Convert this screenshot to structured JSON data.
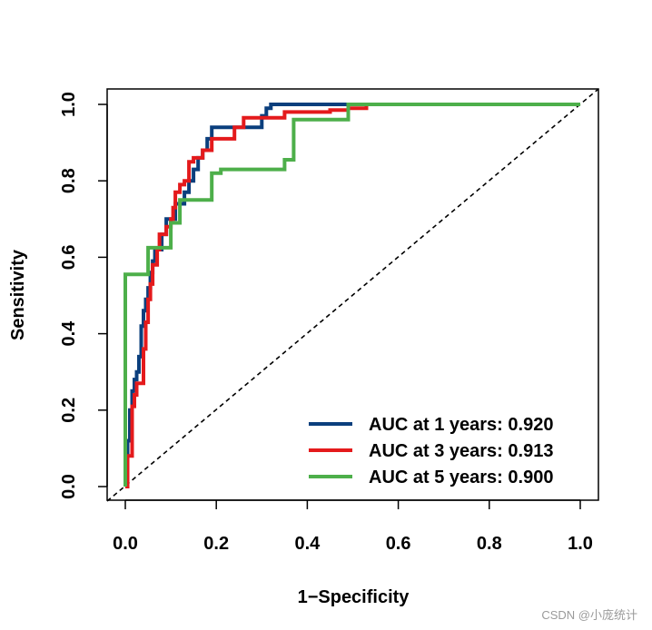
{
  "chart_data": {
    "type": "line",
    "title": "",
    "xlabel": "1−Specificity",
    "ylabel": "Sensitivity",
    "xlim": [
      0,
      1
    ],
    "ylim": [
      0,
      1
    ],
    "x_ticks": [
      0.0,
      0.2,
      0.4,
      0.6,
      0.8,
      1.0
    ],
    "y_ticks": [
      0.0,
      0.2,
      0.4,
      0.6,
      0.8,
      1.0
    ],
    "x_tick_labels": [
      "0.0",
      "0.2",
      "0.4",
      "0.6",
      "0.8",
      "1.0"
    ],
    "y_tick_labels": [
      "0.0",
      "0.2",
      "0.4",
      "0.6",
      "0.8",
      "1.0"
    ],
    "grid": false,
    "legend_position": "bottom-right",
    "reference_line": {
      "style": "dashed",
      "color": "#000000",
      "from": [
        0,
        0
      ],
      "to": [
        1,
        1
      ]
    },
    "series": [
      {
        "name": "AUC at 1 years: 0.920",
        "color": "#0b3f7d",
        "points": [
          [
            0.0,
            0.0
          ],
          [
            0.005,
            0.0
          ],
          [
            0.005,
            0.12
          ],
          [
            0.01,
            0.12
          ],
          [
            0.01,
            0.2
          ],
          [
            0.015,
            0.2
          ],
          [
            0.015,
            0.25
          ],
          [
            0.02,
            0.25
          ],
          [
            0.02,
            0.28
          ],
          [
            0.025,
            0.28
          ],
          [
            0.025,
            0.3
          ],
          [
            0.03,
            0.3
          ],
          [
            0.03,
            0.34
          ],
          [
            0.035,
            0.34
          ],
          [
            0.035,
            0.42
          ],
          [
            0.04,
            0.42
          ],
          [
            0.04,
            0.46
          ],
          [
            0.045,
            0.46
          ],
          [
            0.045,
            0.49
          ],
          [
            0.05,
            0.49
          ],
          [
            0.05,
            0.52
          ],
          [
            0.055,
            0.52
          ],
          [
            0.055,
            0.56
          ],
          [
            0.06,
            0.56
          ],
          [
            0.06,
            0.59
          ],
          [
            0.065,
            0.59
          ],
          [
            0.065,
            0.62
          ],
          [
            0.08,
            0.62
          ],
          [
            0.08,
            0.66
          ],
          [
            0.09,
            0.66
          ],
          [
            0.09,
            0.7
          ],
          [
            0.11,
            0.7
          ],
          [
            0.11,
            0.74
          ],
          [
            0.13,
            0.74
          ],
          [
            0.13,
            0.77
          ],
          [
            0.14,
            0.77
          ],
          [
            0.14,
            0.8
          ],
          [
            0.15,
            0.8
          ],
          [
            0.15,
            0.83
          ],
          [
            0.16,
            0.83
          ],
          [
            0.16,
            0.86
          ],
          [
            0.17,
            0.86
          ],
          [
            0.17,
            0.88
          ],
          [
            0.18,
            0.88
          ],
          [
            0.18,
            0.91
          ],
          [
            0.19,
            0.91
          ],
          [
            0.19,
            0.94
          ],
          [
            0.3,
            0.94
          ],
          [
            0.3,
            0.97
          ],
          [
            0.31,
            0.97
          ],
          [
            0.31,
            0.99
          ],
          [
            0.32,
            0.99
          ],
          [
            0.32,
            1.0
          ],
          [
            1.0,
            1.0
          ]
        ]
      },
      {
        "name": "AUC at 3 years: 0.913",
        "color": "#e41a1c",
        "points": [
          [
            0.0,
            0.0
          ],
          [
            0.005,
            0.0
          ],
          [
            0.005,
            0.08
          ],
          [
            0.015,
            0.08
          ],
          [
            0.015,
            0.21
          ],
          [
            0.02,
            0.21
          ],
          [
            0.02,
            0.24
          ],
          [
            0.025,
            0.24
          ],
          [
            0.025,
            0.27
          ],
          [
            0.04,
            0.27
          ],
          [
            0.04,
            0.36
          ],
          [
            0.045,
            0.36
          ],
          [
            0.045,
            0.43
          ],
          [
            0.05,
            0.43
          ],
          [
            0.05,
            0.49
          ],
          [
            0.055,
            0.49
          ],
          [
            0.055,
            0.53
          ],
          [
            0.06,
            0.53
          ],
          [
            0.06,
            0.58
          ],
          [
            0.07,
            0.58
          ],
          [
            0.07,
            0.62
          ],
          [
            0.075,
            0.62
          ],
          [
            0.075,
            0.66
          ],
          [
            0.09,
            0.66
          ],
          [
            0.09,
            0.68
          ],
          [
            0.1,
            0.68
          ],
          [
            0.1,
            0.7
          ],
          [
            0.105,
            0.7
          ],
          [
            0.105,
            0.73
          ],
          [
            0.11,
            0.73
          ],
          [
            0.11,
            0.77
          ],
          [
            0.12,
            0.77
          ],
          [
            0.12,
            0.79
          ],
          [
            0.13,
            0.79
          ],
          [
            0.13,
            0.8
          ],
          [
            0.14,
            0.8
          ],
          [
            0.14,
            0.85
          ],
          [
            0.15,
            0.85
          ],
          [
            0.15,
            0.86
          ],
          [
            0.17,
            0.86
          ],
          [
            0.17,
            0.88
          ],
          [
            0.19,
            0.88
          ],
          [
            0.19,
            0.91
          ],
          [
            0.24,
            0.91
          ],
          [
            0.24,
            0.94
          ],
          [
            0.26,
            0.94
          ],
          [
            0.26,
            0.965
          ],
          [
            0.35,
            0.965
          ],
          [
            0.35,
            0.98
          ],
          [
            0.45,
            0.98
          ],
          [
            0.45,
            0.985
          ],
          [
            0.49,
            0.985
          ],
          [
            0.49,
            0.99
          ],
          [
            0.53,
            0.99
          ],
          [
            0.53,
            1.0
          ]
        ]
      },
      {
        "name": "AUC at 5 years: 0.900",
        "color": "#4daf4a",
        "points": [
          [
            0.0,
            0.0
          ],
          [
            0.0,
            0.555
          ],
          [
            0.05,
            0.555
          ],
          [
            0.05,
            0.625
          ],
          [
            0.1,
            0.625
          ],
          [
            0.1,
            0.69
          ],
          [
            0.12,
            0.69
          ],
          [
            0.12,
            0.75
          ],
          [
            0.19,
            0.75
          ],
          [
            0.19,
            0.82
          ],
          [
            0.21,
            0.82
          ],
          [
            0.21,
            0.83
          ],
          [
            0.35,
            0.83
          ],
          [
            0.35,
            0.855
          ],
          [
            0.37,
            0.855
          ],
          [
            0.37,
            0.96
          ],
          [
            0.49,
            0.96
          ],
          [
            0.49,
            1.0
          ],
          [
            1.0,
            1.0
          ]
        ]
      }
    ]
  },
  "watermark": "CSDN @小庞统计"
}
